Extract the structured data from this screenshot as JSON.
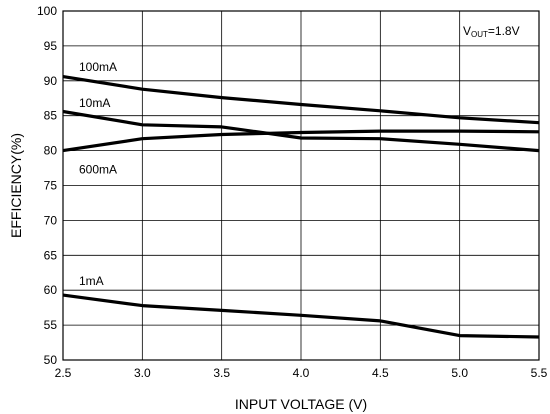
{
  "chart_data": {
    "type": "line",
    "xlabel": "INPUT VOLTAGE (V)",
    "ylabel": "EFFICIENCY(%)",
    "xlim": [
      2.5,
      5.5
    ],
    "ylim": [
      50,
      100
    ],
    "x_ticks": [
      "2.5",
      "3.0",
      "3.5",
      "4.0",
      "4.5",
      "5.0",
      "5.5"
    ],
    "y_ticks": [
      "50",
      "55",
      "60",
      "65",
      "70",
      "75",
      "80",
      "85",
      "90",
      "95",
      "100"
    ],
    "grid": true,
    "annotation": {
      "main": "V",
      "sub": "OUT",
      "suffix": "=1.8V"
    },
    "series": [
      {
        "name": "100mA",
        "x": [
          2.5,
          3.0,
          3.5,
          4.0,
          4.5,
          5.0,
          5.5
        ],
        "y": [
          90.6,
          88.8,
          87.6,
          86.6,
          85.7,
          84.7,
          84.0
        ]
      },
      {
        "name": "10mA",
        "x": [
          2.5,
          3.0,
          3.5,
          4.0,
          4.5,
          5.0,
          5.5
        ],
        "y": [
          85.6,
          83.7,
          83.4,
          81.8,
          81.7,
          80.9,
          80.0
        ]
      },
      {
        "name": "600mA",
        "x": [
          2.5,
          3.0,
          3.5,
          4.0,
          4.5,
          5.0,
          5.5
        ],
        "y": [
          80.0,
          81.7,
          82.3,
          82.6,
          82.8,
          82.8,
          82.7
        ]
      },
      {
        "name": "1mA",
        "x": [
          2.5,
          3.0,
          3.5,
          4.0,
          4.5,
          5.0,
          5.5
        ],
        "y": [
          59.3,
          57.8,
          57.1,
          56.4,
          55.6,
          53.5,
          53.3
        ]
      }
    ]
  }
}
